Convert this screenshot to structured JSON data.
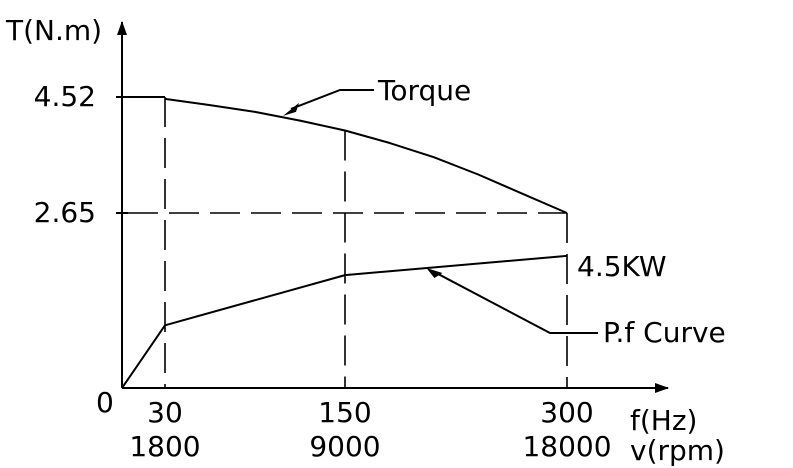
{
  "chart_data": {
    "type": "line",
    "ylabel": "T(N.m)",
    "xlabel": "f(Hz)",
    "xlabel2": "v(rpm)",
    "origin_label": "0",
    "x_ticks": [
      {
        "f": 30,
        "f_label": "30",
        "rpm_label": "1800"
      },
      {
        "f": 150,
        "f_label": "150",
        "rpm_label": "9000"
      },
      {
        "f": 300,
        "f_label": "300",
        "rpm_label": "18000"
      }
    ],
    "y_ticks": [
      {
        "value": 4.52,
        "label": "4.52"
      },
      {
        "value": 2.65,
        "label": "2.65"
      }
    ],
    "xlim": [
      0,
      330
    ],
    "ylim": [
      0,
      5
    ],
    "grid": false,
    "series": [
      {
        "name": "Torque",
        "x": [
          0,
          30,
          60,
          90,
          120,
          150,
          180,
          210,
          240,
          270,
          300
        ],
        "y": [
          4.52,
          4.49,
          4.39,
          4.28,
          4.14,
          3.98,
          3.78,
          3.55,
          3.27,
          2.96,
          2.65
        ]
      },
      {
        "name": "P.f Curve",
        "x": [
          0,
          30,
          150,
          300
        ],
        "y": [
          0.0,
          0.95,
          1.71,
          2.0
        ]
      }
    ],
    "annotations": [
      {
        "text": "Torque",
        "target": "Torque"
      },
      {
        "text": "P.f Curve",
        "target": "P.f Curve"
      },
      {
        "text": "4.5KW",
        "target": "end-point"
      }
    ]
  }
}
